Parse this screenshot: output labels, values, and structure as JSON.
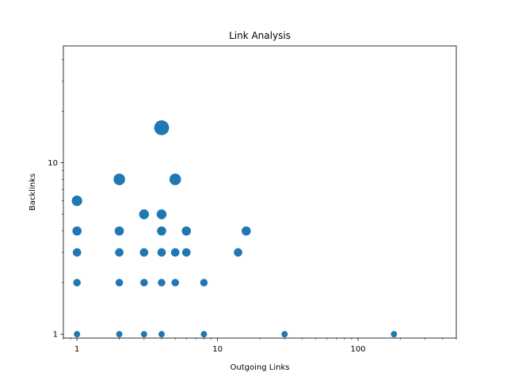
{
  "chart_data": {
    "type": "scatter",
    "title": "Link Analysis",
    "xlabel": "Outgoing Links",
    "ylabel": "Backlinks",
    "xscale": "log",
    "yscale": "log",
    "xlim": [
      0.8,
      500
    ],
    "ylim": [
      0.95,
      48
    ],
    "xticks": [
      {
        "value": 1,
        "label": "1"
      },
      {
        "value": 10,
        "label": "10"
      },
      {
        "value": 100,
        "label": "100"
      }
    ],
    "yticks": [
      {
        "value": 1,
        "label": "1"
      },
      {
        "value": 10,
        "label": "10"
      }
    ],
    "grid": false,
    "color": "#1f77b4",
    "size_encodes": "backlinks",
    "points": [
      {
        "x": 1,
        "y": 1
      },
      {
        "x": 2,
        "y": 1
      },
      {
        "x": 3,
        "y": 1
      },
      {
        "x": 4,
        "y": 1
      },
      {
        "x": 8,
        "y": 1
      },
      {
        "x": 30,
        "y": 1
      },
      {
        "x": 180,
        "y": 1
      },
      {
        "x": 1,
        "y": 2
      },
      {
        "x": 2,
        "y": 2
      },
      {
        "x": 3,
        "y": 2
      },
      {
        "x": 4,
        "y": 2
      },
      {
        "x": 5,
        "y": 2
      },
      {
        "x": 8,
        "y": 2
      },
      {
        "x": 1,
        "y": 3
      },
      {
        "x": 2,
        "y": 3
      },
      {
        "x": 3,
        "y": 3
      },
      {
        "x": 4,
        "y": 3
      },
      {
        "x": 5,
        "y": 3
      },
      {
        "x": 6,
        "y": 3
      },
      {
        "x": 14,
        "y": 3
      },
      {
        "x": 1,
        "y": 4
      },
      {
        "x": 2,
        "y": 4
      },
      {
        "x": 4,
        "y": 4
      },
      {
        "x": 6,
        "y": 4
      },
      {
        "x": 16,
        "y": 4
      },
      {
        "x": 3,
        "y": 5
      },
      {
        "x": 4,
        "y": 5
      },
      {
        "x": 1,
        "y": 6
      },
      {
        "x": 2,
        "y": 8
      },
      {
        "x": 5,
        "y": 8
      },
      {
        "x": 4,
        "y": 16
      }
    ]
  }
}
